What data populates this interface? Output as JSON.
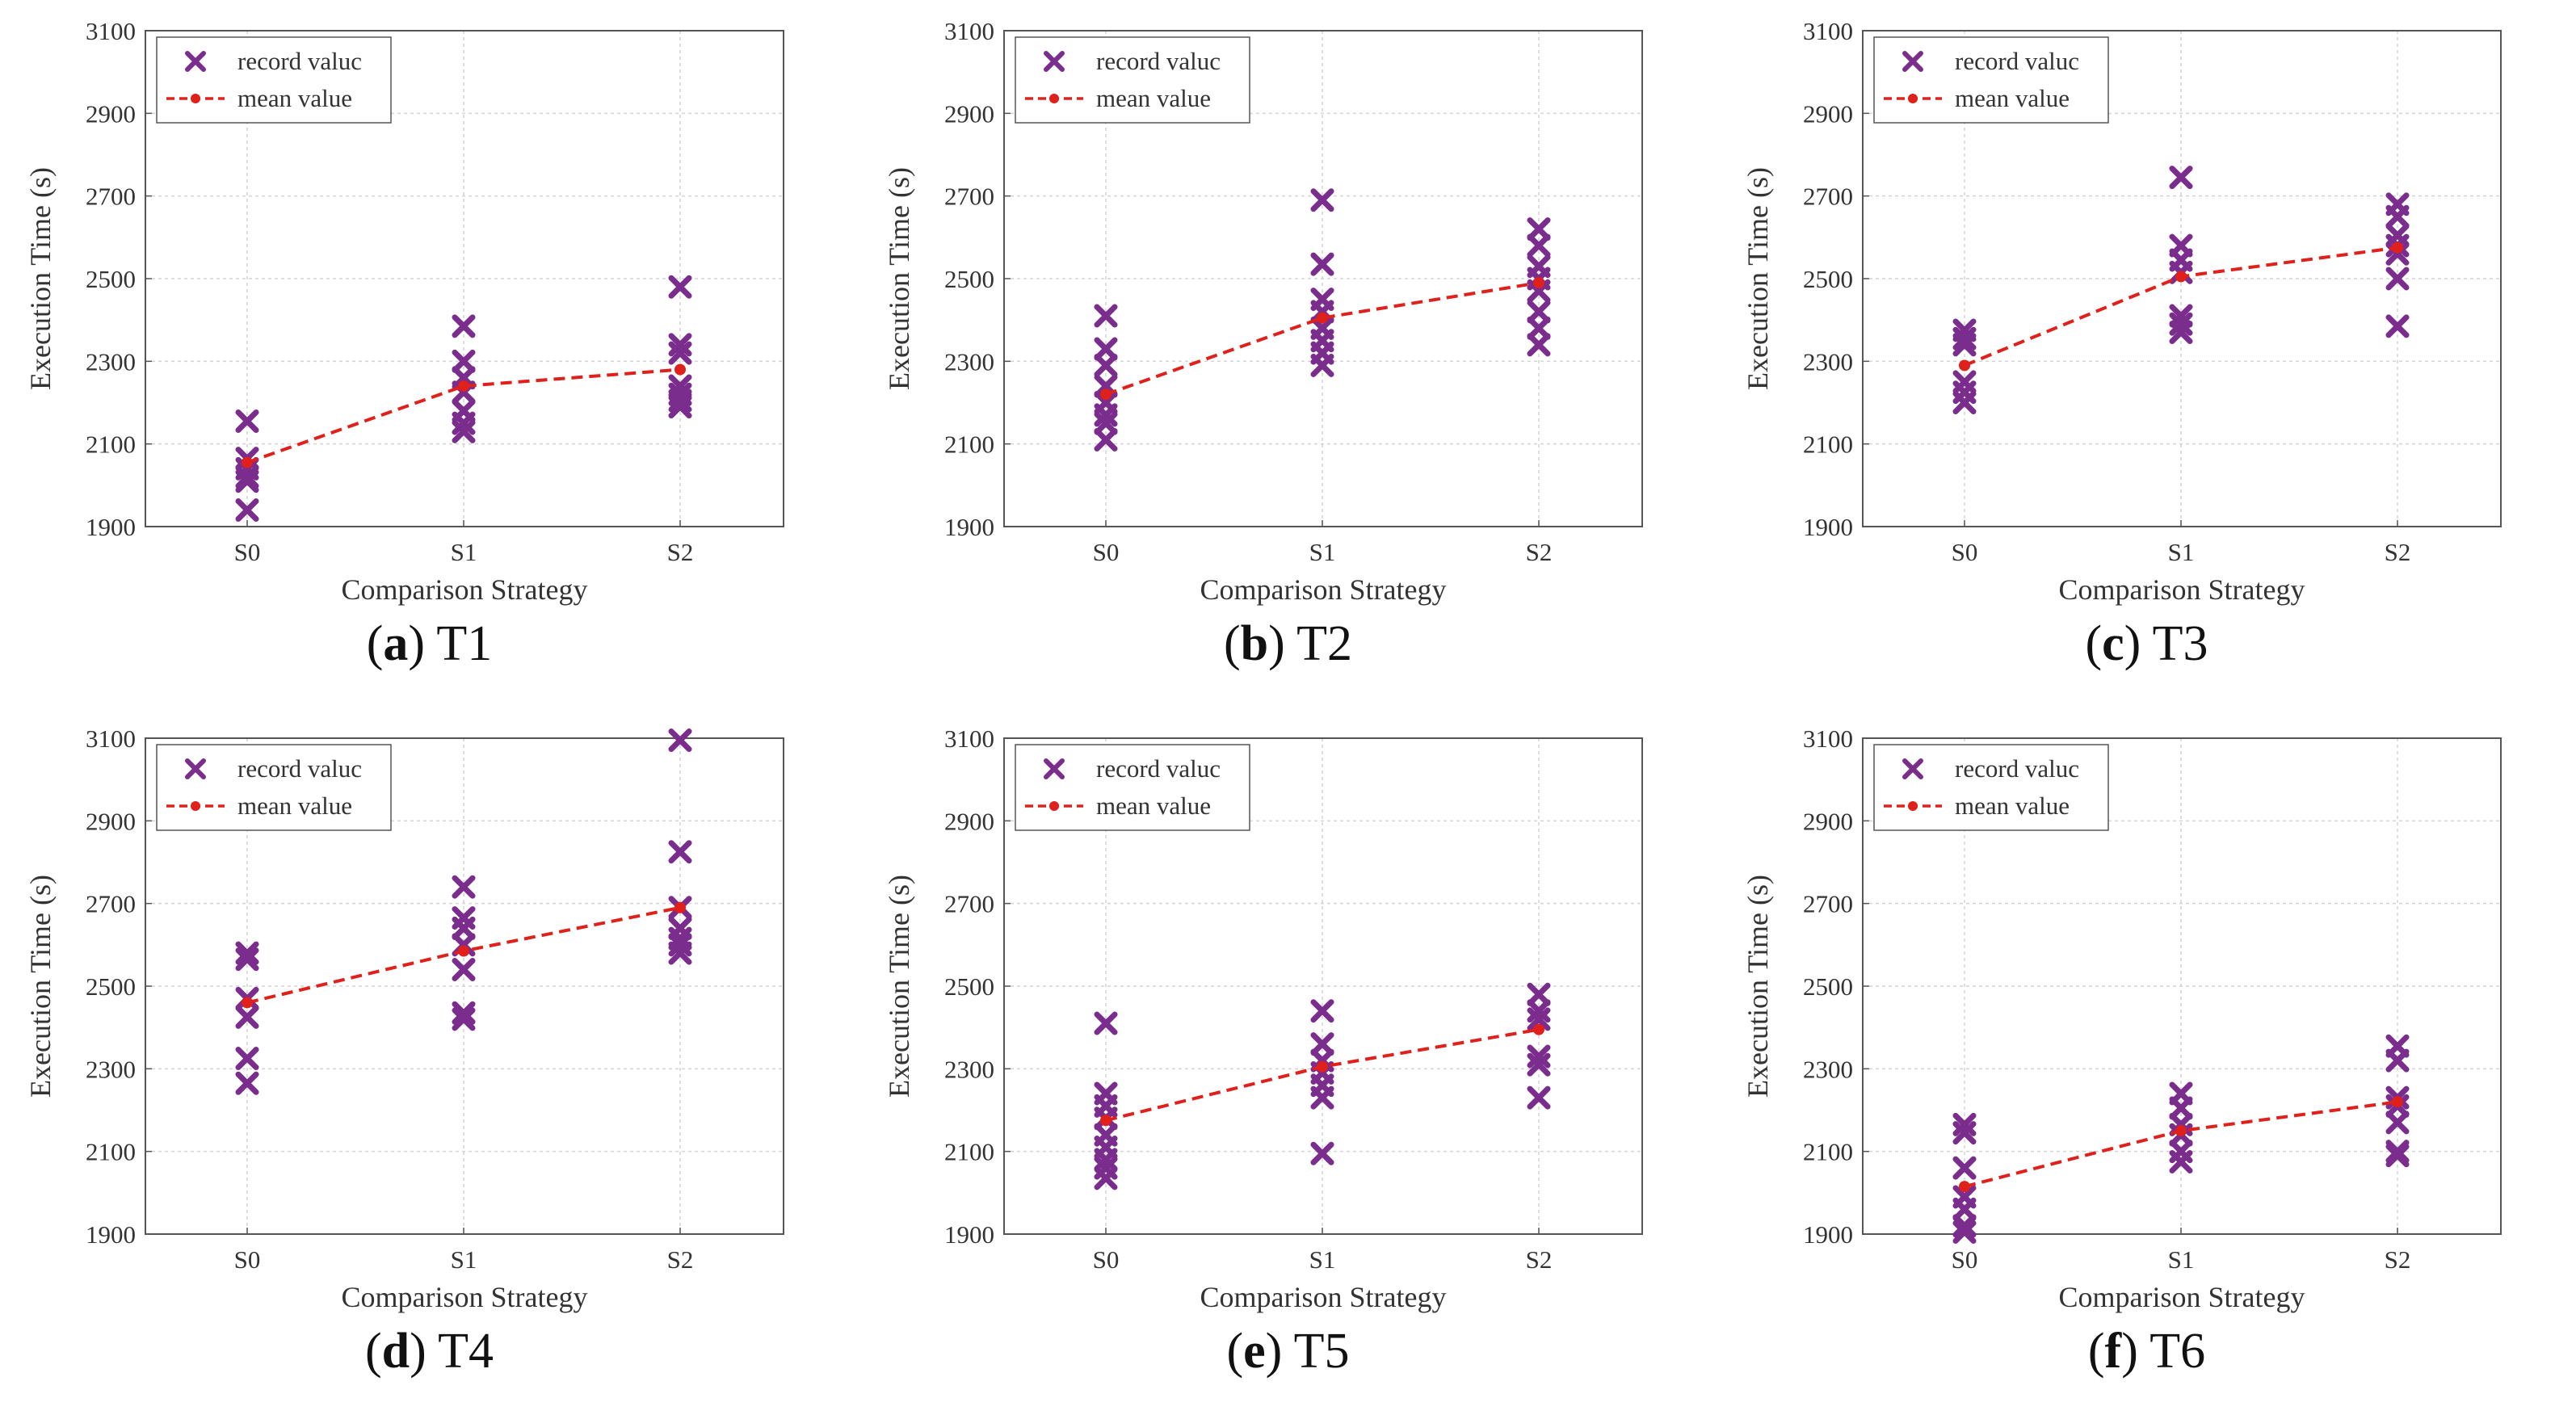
{
  "colors": {
    "record": "#7b2d8e",
    "mean": "#e0201b"
  },
  "chart_data": [
    {
      "type": "scatter",
      "caption_letter": "a",
      "caption_name": "T1",
      "xlabel": "Comparison Strategy",
      "ylabel": "Execution Time (s)",
      "categories": [
        "S0",
        "S1",
        "S2"
      ],
      "ylim": [
        1900,
        3100
      ],
      "yticks": [
        1900,
        2100,
        2300,
        2500,
        2700,
        2900,
        3100
      ],
      "grid": true,
      "legend_position": "top-left",
      "legend": [
        "record valuc",
        "mean value"
      ],
      "series": [
        {
          "name": "record valuc",
          "points": [
            [
              0,
              2155
            ],
            [
              0,
              2065
            ],
            [
              0,
              2040
            ],
            [
              0,
              2020
            ],
            [
              0,
              2010
            ],
            [
              0,
              1940
            ],
            [
              1,
              2385
            ],
            [
              1,
              2300
            ],
            [
              1,
              2260
            ],
            [
              1,
              2225
            ],
            [
              1,
              2180
            ],
            [
              1,
              2150
            ],
            [
              1,
              2130
            ],
            [
              2,
              2480
            ],
            [
              2,
              2340
            ],
            [
              2,
              2320
            ],
            [
              2,
              2240
            ],
            [
              2,
              2220
            ],
            [
              2,
              2205
            ],
            [
              2,
              2190
            ]
          ]
        },
        {
          "name": "mean value",
          "values": [
            2055,
            2240,
            2280
          ]
        }
      ]
    },
    {
      "type": "scatter",
      "caption_letter": "b",
      "caption_name": "T2",
      "xlabel": "Comparison Strategy",
      "ylabel": "Execution Time (s)",
      "categories": [
        "S0",
        "S1",
        "S2"
      ],
      "ylim": [
        1900,
        3100
      ],
      "yticks": [
        1900,
        2100,
        2300,
        2500,
        2700,
        2900,
        3100
      ],
      "grid": true,
      "legend_position": "top-left",
      "legend": [
        "record valuc",
        "mean value"
      ],
      "series": [
        {
          "name": "record valuc",
          "points": [
            [
              0,
              2410
            ],
            [
              0,
              2330
            ],
            [
              0,
              2290
            ],
            [
              0,
              2240
            ],
            [
              0,
              2200
            ],
            [
              0,
              2170
            ],
            [
              0,
              2150
            ],
            [
              0,
              2110
            ],
            [
              1,
              2690
            ],
            [
              1,
              2535
            ],
            [
              1,
              2450
            ],
            [
              1,
              2420
            ],
            [
              1,
              2380
            ],
            [
              1,
              2350
            ],
            [
              1,
              2320
            ],
            [
              1,
              2290
            ],
            [
              2,
              2620
            ],
            [
              2,
              2580
            ],
            [
              2,
              2530
            ],
            [
              2,
              2500
            ],
            [
              2,
              2470
            ],
            [
              2,
              2420
            ],
            [
              2,
              2380
            ],
            [
              2,
              2340
            ]
          ]
        },
        {
          "name": "mean value",
          "values": [
            2220,
            2405,
            2490
          ]
        }
      ]
    },
    {
      "type": "scatter",
      "caption_letter": "c",
      "caption_name": "T3",
      "xlabel": "Comparison Strategy",
      "ylabel": "Execution Time (s)",
      "categories": [
        "S0",
        "S1",
        "S2"
      ],
      "ylim": [
        1900,
        3100
      ],
      "yticks": [
        1900,
        2100,
        2300,
        2500,
        2700,
        2900,
        3100
      ],
      "grid": true,
      "legend_position": "top-left",
      "legend": [
        "record valuc",
        "mean value"
      ],
      "series": [
        {
          "name": "record valuc",
          "points": [
            [
              0,
              2375
            ],
            [
              0,
              2355
            ],
            [
              0,
              2340
            ],
            [
              0,
              2250
            ],
            [
              0,
              2225
            ],
            [
              0,
              2200
            ],
            [
              1,
              2745
            ],
            [
              1,
              2580
            ],
            [
              1,
              2545
            ],
            [
              1,
              2515
            ],
            [
              1,
              2410
            ],
            [
              1,
              2390
            ],
            [
              1,
              2370
            ],
            [
              2,
              2680
            ],
            [
              2,
              2650
            ],
            [
              2,
              2605
            ],
            [
              2,
              2580
            ],
            [
              2,
              2560
            ],
            [
              2,
              2500
            ],
            [
              2,
              2385
            ]
          ]
        },
        {
          "name": "mean value",
          "values": [
            2290,
            2505,
            2575
          ]
        }
      ]
    },
    {
      "type": "scatter",
      "caption_letter": "d",
      "caption_name": "T4",
      "xlabel": "Comparison Strategy",
      "ylabel": "Execution Time (s)",
      "categories": [
        "S0",
        "S1",
        "S2"
      ],
      "ylim": [
        1900,
        3100
      ],
      "yticks": [
        1900,
        2100,
        2300,
        2500,
        2700,
        2900,
        3100
      ],
      "grid": true,
      "legend_position": "top-left",
      "legend": [
        "record valuc",
        "mean value"
      ],
      "series": [
        {
          "name": "record valuc",
          "points": [
            [
              0,
              2580
            ],
            [
              0,
              2565
            ],
            [
              0,
              2470
            ],
            [
              0,
              2425
            ],
            [
              0,
              2325
            ],
            [
              0,
              2265
            ],
            [
              1,
              2740
            ],
            [
              1,
              2665
            ],
            [
              1,
              2640
            ],
            [
              1,
              2600
            ],
            [
              1,
              2540
            ],
            [
              1,
              2435
            ],
            [
              1,
              2420
            ],
            [
              2,
              3095
            ],
            [
              2,
              2825
            ],
            [
              2,
              2690
            ],
            [
              2,
              2640
            ],
            [
              2,
              2615
            ],
            [
              2,
              2600
            ],
            [
              2,
              2580
            ]
          ]
        },
        {
          "name": "mean value",
          "values": [
            2460,
            2585,
            2690
          ]
        }
      ]
    },
    {
      "type": "scatter",
      "caption_letter": "e",
      "caption_name": "T5",
      "xlabel": "Comparison Strategy",
      "ylabel": "Execution Time (s)",
      "categories": [
        "S0",
        "S1",
        "S2"
      ],
      "ylim": [
        1900,
        3100
      ],
      "yticks": [
        1900,
        2100,
        2300,
        2500,
        2700,
        2900,
        3100
      ],
      "grid": true,
      "legend_position": "top-left",
      "legend": [
        "record valuc",
        "mean value"
      ],
      "series": [
        {
          "name": "record valuc",
          "points": [
            [
              0,
              2410
            ],
            [
              0,
              2240
            ],
            [
              0,
              2210
            ],
            [
              0,
              2180
            ],
            [
              0,
              2140
            ],
            [
              0,
              2110
            ],
            [
              0,
              2080
            ],
            [
              0,
              2060
            ],
            [
              0,
              2035
            ],
            [
              1,
              2440
            ],
            [
              1,
              2360
            ],
            [
              1,
              2320
            ],
            [
              1,
              2290
            ],
            [
              1,
              2260
            ],
            [
              1,
              2230
            ],
            [
              1,
              2095
            ],
            [
              2,
              2480
            ],
            [
              2,
              2440
            ],
            [
              2,
              2420
            ],
            [
              2,
              2330
            ],
            [
              2,
              2310
            ],
            [
              2,
              2230
            ]
          ]
        },
        {
          "name": "mean value",
          "values": [
            2175,
            2305,
            2395
          ]
        }
      ]
    },
    {
      "type": "scatter",
      "caption_letter": "f",
      "caption_name": "T6",
      "xlabel": "Comparison Strategy",
      "ylabel": "Execution Time (s)",
      "categories": [
        "S0",
        "S1",
        "S2"
      ],
      "ylim": [
        1900,
        3100
      ],
      "yticks": [
        1900,
        2100,
        2300,
        2500,
        2700,
        2900,
        3100
      ],
      "grid": true,
      "legend_position": "top-left",
      "legend": [
        "record valuc",
        "mean value"
      ],
      "series": [
        {
          "name": "record valuc",
          "points": [
            [
              0,
              2165
            ],
            [
              0,
              2145
            ],
            [
              0,
              2060
            ],
            [
              0,
              1990
            ],
            [
              0,
              1960
            ],
            [
              0,
              1920
            ],
            [
              0,
              1905
            ],
            [
              1,
              2240
            ],
            [
              1,
              2205
            ],
            [
              1,
              2165
            ],
            [
              1,
              2140
            ],
            [
              1,
              2100
            ],
            [
              1,
              2075
            ],
            [
              2,
              2355
            ],
            [
              2,
              2320
            ],
            [
              2,
              2230
            ],
            [
              2,
              2210
            ],
            [
              2,
              2170
            ],
            [
              2,
              2100
            ],
            [
              2,
              2090
            ]
          ]
        },
        {
          "name": "mean value",
          "values": [
            2015,
            2150,
            2220
          ]
        }
      ]
    }
  ]
}
